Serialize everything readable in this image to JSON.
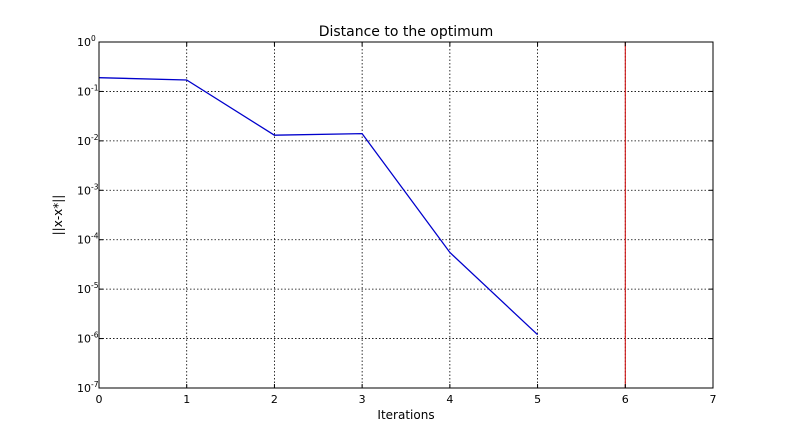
{
  "chart_data": {
    "type": "line",
    "title": "Distance to the optimum",
    "xlabel": "Iterations",
    "ylabel": "||x-x*||",
    "xlim": [
      0,
      7
    ],
    "ylim": [
      1e-07,
      1
    ],
    "yscale": "log",
    "grid": true,
    "x_ticks": [
      "0",
      "1",
      "2",
      "3",
      "4",
      "5",
      "6",
      "7"
    ],
    "y_ticks": [
      {
        "value": 1e-07,
        "base": "10",
        "exp": "-7"
      },
      {
        "value": 1e-06,
        "base": "10",
        "exp": "-6"
      },
      {
        "value": 1e-05,
        "base": "10",
        "exp": "-5"
      },
      {
        "value": 0.0001,
        "base": "10",
        "exp": "-4"
      },
      {
        "value": 0.001,
        "base": "10",
        "exp": "-3"
      },
      {
        "value": 0.01,
        "base": "10",
        "exp": "-2"
      },
      {
        "value": 0.1,
        "base": "10",
        "exp": "-1"
      },
      {
        "value": 1,
        "base": "10",
        "exp": "0"
      }
    ],
    "series": [
      {
        "color": "#0000cc",
        "x": [
          0,
          1,
          2,
          3,
          4,
          5
        ],
        "y": [
          0.19,
          0.17,
          0.013,
          0.014,
          5.5e-05,
          1.2e-06
        ]
      }
    ],
    "vlines": [
      {
        "x": 6,
        "color": "#cc0000"
      }
    ]
  }
}
